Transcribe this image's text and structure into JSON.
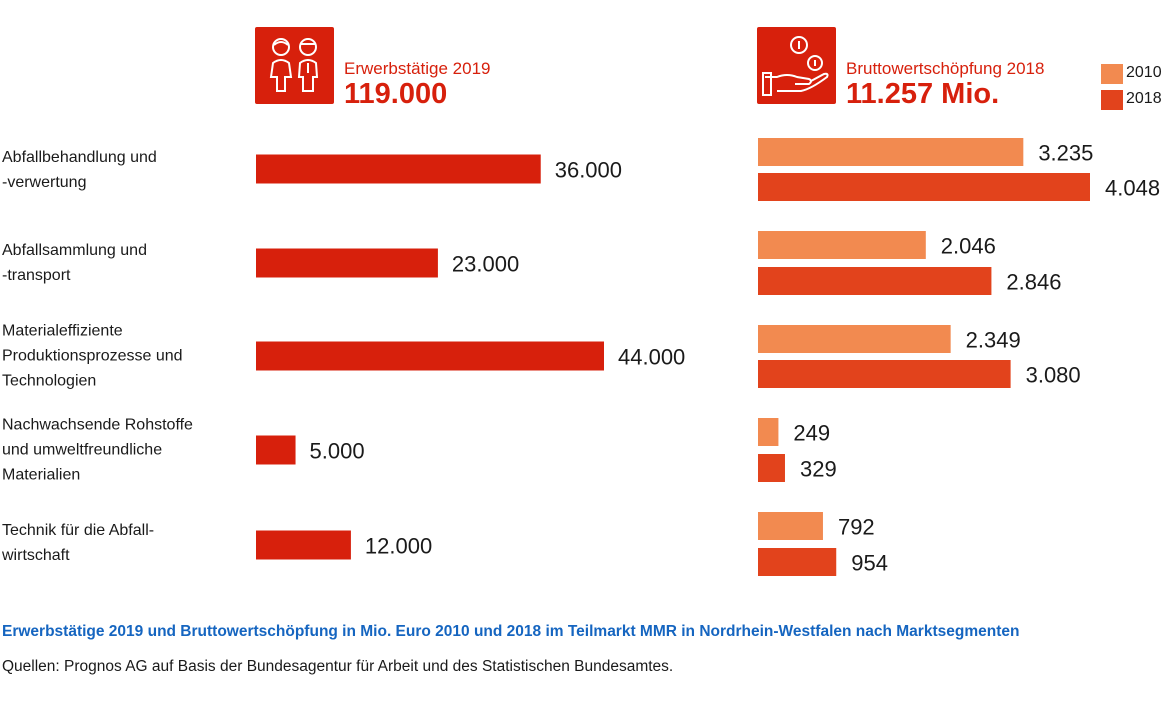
{
  "colors": {
    "employment": "#d7200c",
    "value_2010": "#f28a50",
    "value_2018": "#e2431c",
    "caption": "#1565c0"
  },
  "left_header": {
    "icon": "two-people-icon",
    "label": "Erwerbstätige 2019",
    "total": "119.000"
  },
  "right_header": {
    "icon": "hand-coins-icon",
    "label": "Bruttowertschöpfung 2018",
    "total": "11.257 Mio."
  },
  "legend": [
    {
      "label": "2010",
      "color": "#f28a50"
    },
    {
      "label": "2018",
      "color": "#e2431c"
    }
  ],
  "caption": "Erwerbstätige 2019 und Bruttowertschöpfung in Mio. Euro 2010 und 2018 im Teilmarkt MMR in Nordrhein-Westfalen nach Marktsegmenten",
  "source": "Quellen: Prognos AG auf Basis der Bundesagentur für Arbeit und des Statistischen Bundesamtes.",
  "chart_data": [
    {
      "type": "bar",
      "orientation": "horizontal",
      "title": "Erwerbstätige 2019",
      "categories": [
        "Abfallbehandlung und -verwertung",
        "Abfallsammlung und -transport",
        "Materialeffiziente Produktionsprozesse und Technologien",
        "Nachwachsende Rohstoffe und umweltfreundliche Materialien",
        "Technik für die Abfall-wirtschaft"
      ],
      "category_lines": [
        [
          "Abfallbehandlung und",
          "-verwertung"
        ],
        [
          "Abfallsammlung und",
          "-transport"
        ],
        [
          "Materialeffiziente",
          "Produktionsprozesse und",
          "Technologien"
        ],
        [
          "Nachwachsende Rohstoffe",
          "und umweltfreundliche",
          "Materialien"
        ],
        [
          "Technik für die Abfall-",
          "wirtschaft"
        ]
      ],
      "values": [
        36000,
        23000,
        44000,
        5000,
        12000
      ],
      "value_labels": [
        "36.000",
        "23.000",
        "44.000",
        "5.000",
        "12.000"
      ],
      "grid": false
    },
    {
      "type": "bar",
      "orientation": "horizontal",
      "title": "Bruttowertschöpfung 2018",
      "categories": [
        "Abfallbehandlung und -verwertung",
        "Abfallsammlung und -transport",
        "Materialeffiziente Produktionsprozesse und Technologien",
        "Nachwachsende Rohstoffe und umweltfreundliche Materialien",
        "Technik für die Abfall-wirtschaft"
      ],
      "series": [
        {
          "name": "2010",
          "values": [
            3235,
            2046,
            2349,
            249,
            792
          ],
          "labels": [
            "3.235",
            "2.046",
            "2.349",
            "249",
            "792"
          ]
        },
        {
          "name": "2018",
          "values": [
            4048,
            2846,
            3080,
            329,
            954
          ],
          "labels": [
            "4.048",
            "2.846",
            "3.080",
            "329",
            "954"
          ]
        }
      ],
      "legend_position": "top-right",
      "grid": false
    }
  ]
}
